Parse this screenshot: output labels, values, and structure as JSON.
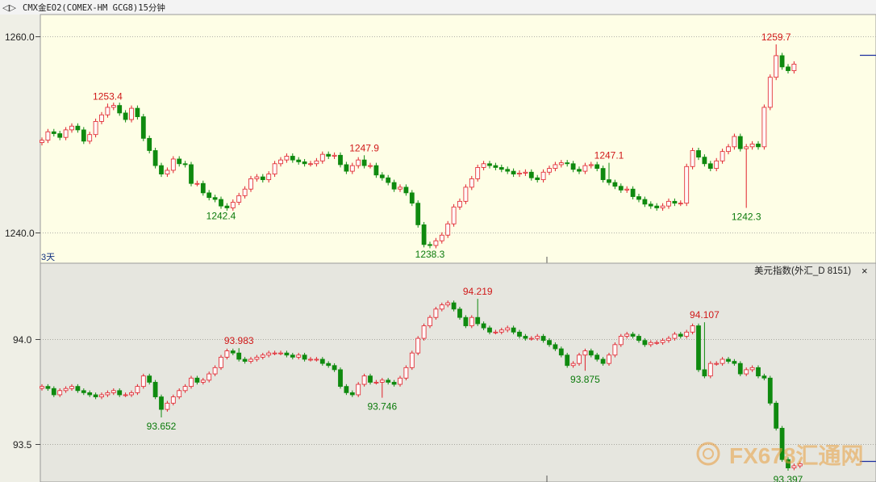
{
  "header": {
    "title": "CMX金EO2(COMEX-HM GCG8)15分钟",
    "nav_glyph": "◁▷"
  },
  "top_panel": {
    "period_label": "3天",
    "y_ticks": [
      "1260.0",
      "1240.0"
    ],
    "annotations": [
      {
        "text": "1253.4",
        "kind": "high"
      },
      {
        "text": "1242.4",
        "kind": "low"
      },
      {
        "text": "1247.9",
        "kind": "high"
      },
      {
        "text": "1238.3",
        "kind": "low"
      },
      {
        "text": "1247.1",
        "kind": "high"
      },
      {
        "text": "1242.3",
        "kind": "low"
      },
      {
        "text": "1259.7",
        "kind": "high"
      }
    ]
  },
  "bottom_panel": {
    "title": "美元指数(外汇_D 8151)",
    "close_glyph": "×",
    "y_ticks": [
      "94.0",
      "93.5"
    ],
    "annotations": [
      {
        "text": "93.652",
        "kind": "low"
      },
      {
        "text": "93.983",
        "kind": "high"
      },
      {
        "text": "93.746",
        "kind": "low"
      },
      {
        "text": "94.219",
        "kind": "high"
      },
      {
        "text": "93.875",
        "kind": "low"
      },
      {
        "text": "94.107",
        "kind": "high"
      },
      {
        "text": "93.397",
        "kind": "low"
      }
    ]
  },
  "watermark": {
    "text": "FX678汇通网"
  },
  "colors": {
    "up": "#e0202a",
    "down": "#0f8a0f",
    "top_bg": "#fefee6",
    "bottom_bg": "#e6e6df"
  },
  "chart_data": [
    {
      "type": "candlestick",
      "title": "CMX金EO2(COMEX-HM GCG8)15分钟",
      "timeframe": "15分钟",
      "ylim": [
        1236.5,
        1261.5
      ],
      "y_ticks": [
        1260.0,
        1240.0
      ],
      "grid": true,
      "close_series": [
        1249.5,
        1250.4,
        1250.2,
        1249.8,
        1250.6,
        1251.0,
        1250.6,
        1249.4,
        1250.1,
        1251.5,
        1252.2,
        1253.0,
        1253.2,
        1252.4,
        1251.7,
        1252.9,
        1252.0,
        1249.7,
        1248.4,
        1246.8,
        1245.9,
        1246.3,
        1247.5,
        1247.0,
        1246.9,
        1244.9,
        1244.9,
        1243.9,
        1243.4,
        1243.2,
        1242.5,
        1242.3,
        1242.9,
        1243.6,
        1244.3,
        1245.4,
        1245.6,
        1245.3,
        1245.9,
        1247.0,
        1247.4,
        1247.8,
        1247.4,
        1247.2,
        1247.0,
        1247.0,
        1247.3,
        1248.0,
        1247.8,
        1247.9,
        1246.9,
        1246.2,
        1246.8,
        1247.4,
        1246.8,
        1246.8,
        1245.8,
        1245.5,
        1245.0,
        1244.3,
        1244.5,
        1243.9,
        1242.8,
        1240.5,
        1238.4,
        1238.3,
        1238.8,
        1239.4,
        1240.6,
        1242.4,
        1243.0,
        1244.5,
        1245.4,
        1246.6,
        1247.0,
        1246.8,
        1246.6,
        1246.4,
        1246.2,
        1245.9,
        1246.0,
        1246.1,
        1245.5,
        1245.3,
        1246.1,
        1246.5,
        1246.9,
        1247.1,
        1247.0,
        1246.4,
        1246.2,
        1246.8,
        1246.9,
        1246.5,
        1245.3,
        1245.0,
        1244.6,
        1244.2,
        1244.3,
        1243.5,
        1243.2,
        1242.7,
        1242.5,
        1242.3,
        1242.5,
        1243.0,
        1242.8,
        1242.8,
        1246.7,
        1248.4,
        1247.7,
        1247.0,
        1246.5,
        1247.3,
        1248.3,
        1248.8,
        1249.9,
        1248.6,
        1248.8,
        1249.1,
        1248.8,
        1253.0,
        1256.2,
        1258.5,
        1257.3,
        1256.9,
        1257.6
      ],
      "annotations": [
        {
          "label": "1253.4",
          "value": 1253.4
        },
        {
          "label": "1242.4",
          "value": 1242.4
        },
        {
          "label": "1247.9",
          "value": 1247.9
        },
        {
          "label": "1238.3",
          "value": 1238.3
        },
        {
          "label": "1247.1",
          "value": 1247.1
        },
        {
          "label": "1242.3",
          "value": 1242.3
        },
        {
          "label": "1259.7",
          "value": 1259.7
        }
      ]
    },
    {
      "type": "candlestick",
      "title": "美元指数(外汇_D 8151)",
      "ylim": [
        93.42,
        94.32
      ],
      "y_ticks": [
        94.0,
        93.5
      ],
      "grid": true,
      "close_series": [
        93.8,
        93.79,
        93.76,
        93.78,
        93.79,
        93.8,
        93.78,
        93.77,
        93.76,
        93.75,
        93.76,
        93.77,
        93.78,
        93.76,
        93.76,
        93.77,
        93.8,
        93.85,
        93.82,
        93.75,
        93.69,
        93.72,
        93.75,
        93.78,
        93.8,
        93.84,
        93.82,
        93.83,
        93.86,
        93.89,
        93.94,
        93.97,
        93.96,
        93.93,
        93.92,
        93.93,
        93.94,
        93.95,
        93.96,
        93.96,
        93.96,
        93.95,
        93.94,
        93.95,
        93.93,
        93.93,
        93.93,
        93.91,
        93.9,
        93.88,
        93.8,
        93.77,
        93.76,
        93.81,
        93.85,
        93.82,
        93.82,
        93.83,
        93.82,
        93.81,
        93.84,
        93.89,
        93.96,
        94.03,
        94.09,
        94.13,
        94.17,
        94.19,
        94.2,
        94.17,
        94.13,
        94.09,
        94.13,
        94.1,
        94.08,
        94.06,
        94.06,
        94.07,
        94.08,
        94.06,
        94.04,
        94.03,
        94.03,
        94.04,
        94.02,
        94.0,
        93.98,
        93.95,
        93.9,
        93.91,
        93.95,
        93.97,
        93.95,
        93.93,
        93.91,
        93.95,
        94.0,
        94.04,
        94.05,
        94.04,
        94.02,
        94.0,
        94.01,
        94.01,
        94.02,
        94.03,
        94.05,
        94.04,
        94.06,
        94.09,
        93.88,
        93.85,
        93.91,
        93.91,
        93.93,
        93.92,
        93.91,
        93.86,
        93.88,
        93.89,
        93.85,
        93.84,
        93.72,
        93.6,
        93.45,
        93.41,
        93.42,
        93.43
      ],
      "annotations": [
        {
          "label": "93.652",
          "value": 93.652
        },
        {
          "label": "93.983",
          "value": 93.983
        },
        {
          "label": "93.746",
          "value": 93.746
        },
        {
          "label": "94.219",
          "value": 94.219
        },
        {
          "label": "93.875",
          "value": 93.875
        },
        {
          "label": "94.107",
          "value": 94.107
        },
        {
          "label": "93.397",
          "value": 93.397
        }
      ]
    }
  ]
}
